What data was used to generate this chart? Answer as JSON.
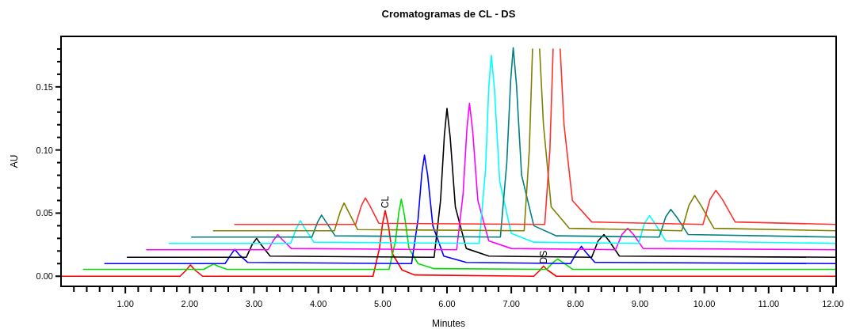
{
  "chart_data": {
    "type": "line",
    "title": "Cromatogramas de CL - DS",
    "xlabel": "Minutes",
    "ylabel": "AU",
    "annotations": [
      {
        "text": "CL",
        "x": 5.04,
        "y": 0.052
      },
      {
        "text": "DS",
        "x": 7.5,
        "y": 0.008
      }
    ],
    "xlim": [
      0,
      12.05
    ],
    "ylim": [
      -0.008,
      0.19
    ],
    "xticks": [
      {
        "value": 0.2,
        "label": null
      },
      {
        "value": 0.4,
        "label": null
      },
      {
        "value": 0.6,
        "label": null
      },
      {
        "value": 0.8,
        "label": null
      },
      {
        "value": 1,
        "label": "1.00"
      },
      {
        "value": 1.2,
        "label": null
      },
      {
        "value": 1.4,
        "label": null
      },
      {
        "value": 1.6,
        "label": null
      },
      {
        "value": 1.8,
        "label": null
      },
      {
        "value": 2,
        "label": "2.00"
      },
      {
        "value": 2.2,
        "label": null
      },
      {
        "value": 2.4,
        "label": null
      },
      {
        "value": 2.6,
        "label": null
      },
      {
        "value": 2.8,
        "label": null
      },
      {
        "value": 3,
        "label": "3.00"
      },
      {
        "value": 3.2,
        "label": null
      },
      {
        "value": 3.4,
        "label": null
      },
      {
        "value": 3.6,
        "label": null
      },
      {
        "value": 3.8,
        "label": null
      },
      {
        "value": 4,
        "label": "4.00"
      },
      {
        "value": 4.2,
        "label": null
      },
      {
        "value": 4.4,
        "label": null
      },
      {
        "value": 4.6,
        "label": null
      },
      {
        "value": 4.8,
        "label": null
      },
      {
        "value": 5,
        "label": "5.00"
      },
      {
        "value": 5.2,
        "label": null
      },
      {
        "value": 5.4,
        "label": null
      },
      {
        "value": 5.6,
        "label": null
      },
      {
        "value": 5.8,
        "label": null
      },
      {
        "value": 6,
        "label": "6.00"
      },
      {
        "value": 6.2,
        "label": null
      },
      {
        "value": 6.4,
        "label": null
      },
      {
        "value": 6.6,
        "label": null
      },
      {
        "value": 6.8,
        "label": null
      },
      {
        "value": 7,
        "label": "7.00"
      },
      {
        "value": 7.2,
        "label": null
      },
      {
        "value": 7.4,
        "label": null
      },
      {
        "value": 7.6,
        "label": null
      },
      {
        "value": 7.8,
        "label": null
      },
      {
        "value": 8,
        "label": "8.00"
      },
      {
        "value": 8.2,
        "label": null
      },
      {
        "value": 8.4,
        "label": null
      },
      {
        "value": 8.6,
        "label": null
      },
      {
        "value": 8.8,
        "label": null
      },
      {
        "value": 9,
        "label": "9.00"
      },
      {
        "value": 9.2,
        "label": null
      },
      {
        "value": 9.4,
        "label": null
      },
      {
        "value": 9.6,
        "label": null
      },
      {
        "value": 9.8,
        "label": null
      },
      {
        "value": 10,
        "label": "10.00"
      },
      {
        "value": 10.2,
        "label": null
      },
      {
        "value": 10.4,
        "label": null
      },
      {
        "value": 10.6,
        "label": null
      },
      {
        "value": 10.8,
        "label": null
      },
      {
        "value": 11,
        "label": "11.00"
      },
      {
        "value": 11.2,
        "label": null
      },
      {
        "value": 11.4,
        "label": null
      },
      {
        "value": 11.6,
        "label": null
      },
      {
        "value": 11.8,
        "label": null
      },
      {
        "value": 12,
        "label": "12.00"
      }
    ],
    "yticks": [
      {
        "value": 0,
        "label": "0.00"
      },
      {
        "value": 0.01,
        "label": null
      },
      {
        "value": 0.02,
        "label": null
      },
      {
        "value": 0.03,
        "label": null
      },
      {
        "value": 0.04,
        "label": null
      },
      {
        "value": 0.05,
        "label": "0.05"
      },
      {
        "value": 0.06,
        "label": null
      },
      {
        "value": 0.07,
        "label": null
      },
      {
        "value": 0.08,
        "label": null
      },
      {
        "value": 0.09,
        "label": null
      },
      {
        "value": 0.1,
        "label": "0.10"
      },
      {
        "value": 0.11,
        "label": null
      },
      {
        "value": 0.12,
        "label": null
      },
      {
        "value": 0.13,
        "label": null
      },
      {
        "value": 0.14,
        "label": null
      },
      {
        "value": 0.15,
        "label": "0.15"
      },
      {
        "value": 0.16,
        "label": null
      },
      {
        "value": 0.17,
        "label": null
      },
      {
        "value": 0.18,
        "label": null
      }
    ],
    "series": [
      {
        "color": "#ff0000",
        "x": [
          0,
          1.85,
          1.95,
          2.01,
          2.08,
          2.2,
          4.85,
          4.95,
          5.0,
          5.04,
          5.09,
          5.15,
          5.3,
          5.5,
          7.35,
          7.45,
          7.5,
          7.56,
          7.7,
          12.05
        ],
        "values": [
          0,
          0,
          0.005,
          0.009,
          0.005,
          0,
          0,
          0.022,
          0.042,
          0.052,
          0.04,
          0.018,
          0.005,
          0.001,
          0,
          0.005,
          0.008,
          0.005,
          0,
          0
        ]
      },
      {
        "color": "#00e000",
        "x": [
          0.35,
          2.22,
          2.31,
          2.37,
          2.44,
          2.58,
          5.1,
          5.2,
          5.25,
          5.29,
          5.34,
          5.41,
          5.55,
          5.8,
          7.55,
          7.65,
          7.72,
          7.8,
          7.95,
          12.05
        ],
        "values": [
          0.0055,
          0.0055,
          0.008,
          0.0098,
          0.008,
          0.0055,
          0.0055,
          0.028,
          0.05,
          0.061,
          0.048,
          0.022,
          0.01,
          0.006,
          0.0055,
          0.011,
          0.0136,
          0.011,
          0.0055,
          0.0055
        ]
      },
      {
        "color": "#0000ff",
        "x": [
          0.68,
          2.55,
          2.64,
          2.7,
          2.77,
          2.9,
          5.45,
          5.55,
          5.61,
          5.65,
          5.7,
          5.78,
          5.95,
          6.3,
          7.92,
          8.02,
          8.09,
          8.16,
          8.3,
          12.05
        ],
        "values": [
          0.01,
          0.01,
          0.017,
          0.0213,
          0.017,
          0.011,
          0.01,
          0.045,
          0.082,
          0.096,
          0.08,
          0.04,
          0.016,
          0.011,
          0.01,
          0.019,
          0.0237,
          0.019,
          0.011,
          0.01
        ]
      },
      {
        "color": "#000000",
        "x": [
          1.03,
          2.88,
          2.97,
          3.04,
          3.11,
          3.25,
          5.8,
          5.9,
          5.96,
          6.0,
          6.05,
          6.13,
          6.3,
          6.65,
          8.25,
          8.35,
          8.44,
          8.52,
          8.68,
          12.05
        ],
        "values": [
          0.015,
          0.015,
          0.025,
          0.03,
          0.025,
          0.016,
          0.015,
          0.06,
          0.112,
          0.133,
          0.11,
          0.055,
          0.022,
          0.016,
          0.015,
          0.028,
          0.033,
          0.028,
          0.016,
          0.015
        ]
      },
      {
        "color": "#ff00ff",
        "x": [
          1.33,
          3.22,
          3.31,
          3.37,
          3.44,
          3.58,
          6.15,
          6.25,
          6.31,
          6.35,
          6.4,
          6.48,
          6.65,
          7.0,
          8.62,
          8.72,
          8.81,
          8.9,
          9.05,
          12.05
        ],
        "values": [
          0.021,
          0.021,
          0.029,
          0.033,
          0.029,
          0.022,
          0.021,
          0.065,
          0.117,
          0.137,
          0.115,
          0.06,
          0.028,
          0.022,
          0.021,
          0.033,
          0.038,
          0.033,
          0.022,
          0.021
        ]
      },
      {
        "color": "#00ffff",
        "x": [
          1.68,
          3.57,
          3.66,
          3.72,
          3.79,
          3.93,
          6.5,
          6.6,
          6.65,
          6.69,
          6.74,
          6.82,
          7.0,
          7.35,
          8.98,
          9.07,
          9.15,
          9.23,
          9.4,
          12.05
        ],
        "values": [
          0.026,
          0.026,
          0.038,
          0.044,
          0.038,
          0.027,
          0.026,
          0.085,
          0.15,
          0.175,
          0.147,
          0.075,
          0.034,
          0.027,
          0.026,
          0.042,
          0.048,
          0.042,
          0.028,
          0.026
        ]
      },
      {
        "color": "#008080",
        "x": [
          2.03,
          3.9,
          3.99,
          4.05,
          4.12,
          4.26,
          6.83,
          6.93,
          6.99,
          7.03,
          7.08,
          7.16,
          7.35,
          7.7,
          9.3,
          9.4,
          9.48,
          9.57,
          9.75,
          12.05
        ],
        "values": [
          0.031,
          0.031,
          0.043,
          0.0485,
          0.043,
          0.032,
          0.031,
          0.09,
          0.155,
          0.181,
          0.152,
          0.08,
          0.04,
          0.032,
          0.031,
          0.047,
          0.053,
          0.047,
          0.033,
          0.031
        ]
      },
      {
        "color": "#808000",
        "x": [
          2.37,
          4.25,
          4.34,
          4.4,
          4.47,
          4.61,
          7.2,
          7.28,
          7.33,
          7.385,
          7.44,
          7.5,
          7.62,
          7.9,
          9.65,
          9.76,
          9.85,
          9.95,
          10.15,
          12.05
        ],
        "values": [
          0.036,
          0.036,
          0.051,
          0.058,
          0.051,
          0.037,
          0.036,
          0.1,
          0.18,
          null,
          0.18,
          0.12,
          0.055,
          0.038,
          0.036,
          0.056,
          0.064,
          0.056,
          0.038,
          0.036
        ]
      },
      {
        "color": "#ff3030",
        "x": [
          2.7,
          4.58,
          4.67,
          4.73,
          4.8,
          4.94,
          7.52,
          7.6,
          7.65,
          7.705,
          7.76,
          7.82,
          7.95,
          8.25,
          9.98,
          10.09,
          10.18,
          10.28,
          10.48,
          12.05
        ],
        "values": [
          0.041,
          0.041,
          0.056,
          0.062,
          0.056,
          0.042,
          0.041,
          0.1,
          0.18,
          null,
          0.18,
          0.12,
          0.06,
          0.043,
          0.041,
          0.061,
          0.068,
          0.061,
          0.043,
          0.041
        ]
      }
    ]
  }
}
